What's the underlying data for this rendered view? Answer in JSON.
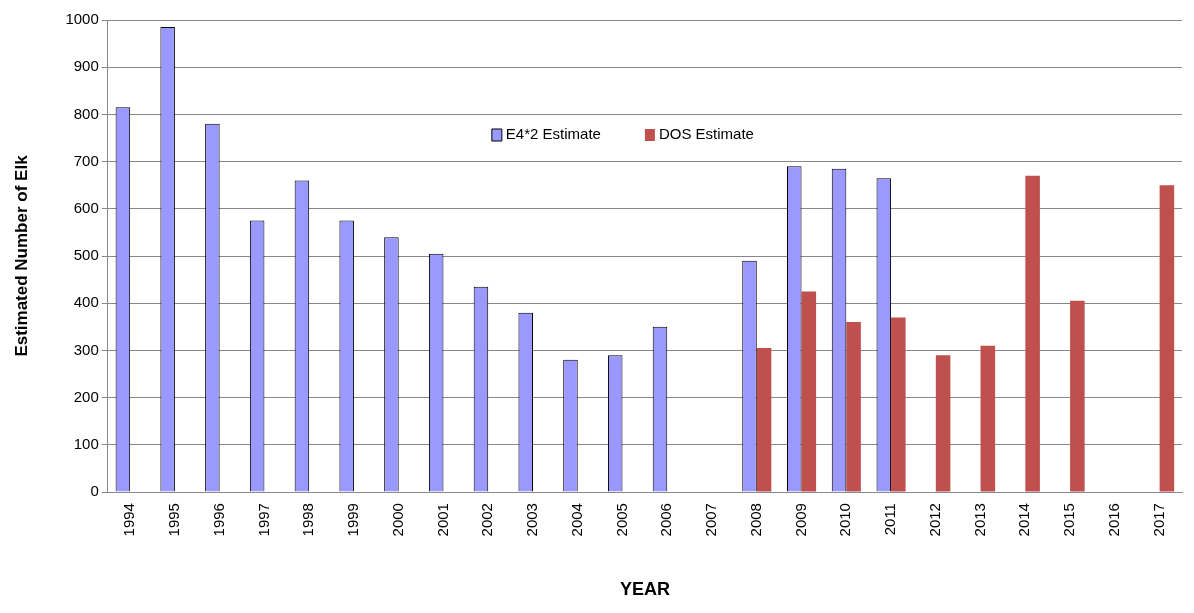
{
  "chart_data": {
    "type": "bar",
    "xlabel": "YEAR",
    "ylabel": "Estimated Number of Elk",
    "categories": [
      "1994",
      "1995",
      "1996",
      "1997",
      "1998",
      "1999",
      "2000",
      "2001",
      "2002",
      "2003",
      "2004",
      "2005",
      "2006",
      "2007",
      "2008",
      "2009",
      "2010",
      "2011",
      "2012",
      "2013",
      "2014",
      "2015",
      "2016",
      "2017"
    ],
    "series": [
      {
        "name": "E4*2 Estimate",
        "color": "#9999ff",
        "values": [
          815,
          985,
          780,
          575,
          660,
          575,
          540,
          505,
          435,
          380,
          280,
          290,
          350,
          null,
          490,
          690,
          685,
          665,
          null,
          null,
          null,
          null,
          null,
          null
        ]
      },
      {
        "name": "DOS Estimate",
        "color": "#c0504d",
        "values": [
          null,
          null,
          null,
          null,
          null,
          null,
          null,
          null,
          null,
          null,
          null,
          null,
          null,
          null,
          305,
          425,
          360,
          370,
          290,
          310,
          670,
          405,
          null,
          650
        ]
      }
    ],
    "ylim": [
      0,
      1000
    ],
    "yticks": [
      0,
      100,
      200,
      300,
      400,
      500,
      600,
      700,
      800,
      900,
      1000
    ],
    "grid": "y",
    "legend": "top"
  }
}
